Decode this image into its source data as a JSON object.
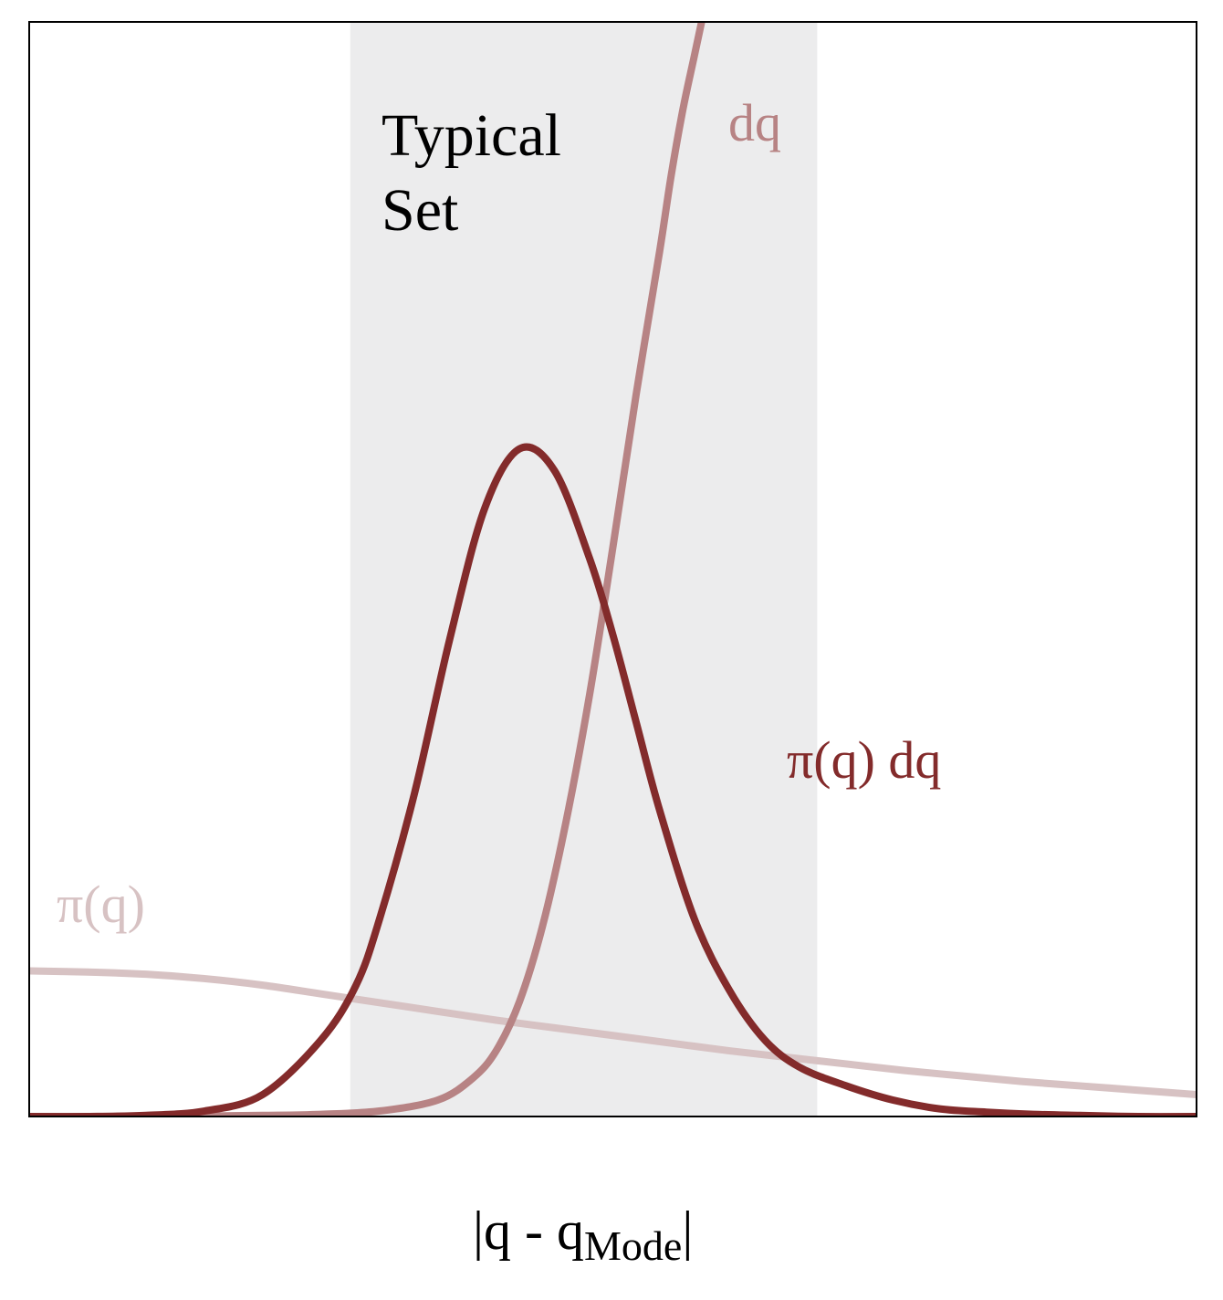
{
  "chart_data": {
    "type": "line",
    "title": "",
    "xlabel": {
      "main": "|q - q",
      "subscript": "Mode",
      "suffix": "|"
    },
    "ylabel": "",
    "xlim": [
      0,
      1
    ],
    "ylim": [
      0,
      1
    ],
    "grid": false,
    "legend": "none",
    "region": {
      "label_line1": "Typical",
      "label_line2": "Set",
      "x_range": [
        0.275,
        0.675
      ],
      "color": "#ececed"
    },
    "series": [
      {
        "name": "π(q)",
        "color": "#d7c2c3",
        "x": [
          0.0,
          0.05,
          0.1,
          0.15,
          0.2,
          0.25,
          0.3,
          0.35,
          0.4,
          0.45,
          0.5,
          0.55,
          0.6,
          0.65,
          0.7,
          0.75,
          0.8,
          0.85,
          0.9,
          0.95,
          1.0
        ],
        "y": [
          0.133,
          0.132,
          0.13,
          0.126,
          0.12,
          0.112,
          0.104,
          0.096,
          0.088,
          0.081,
          0.074,
          0.067,
          0.06,
          0.054,
          0.048,
          0.042,
          0.037,
          0.032,
          0.028,
          0.024,
          0.02
        ]
      },
      {
        "name": "dq",
        "color": "#b78384",
        "x": [
          0.0,
          0.1,
          0.2,
          0.25,
          0.3,
          0.35,
          0.38,
          0.4,
          0.42,
          0.44,
          0.46,
          0.48,
          0.5,
          0.52,
          0.54,
          0.55,
          0.56,
          0.57,
          0.58
        ],
        "y": [
          0.0,
          0.0,
          0.001,
          0.002,
          0.005,
          0.015,
          0.035,
          0.06,
          0.105,
          0.175,
          0.27,
          0.385,
          0.52,
          0.66,
          0.79,
          0.86,
          0.92,
          0.97,
          1.02
        ]
      },
      {
        "name": "π(q) dq",
        "color": "#832b2b",
        "x": [
          0.0,
          0.05,
          0.1,
          0.15,
          0.2,
          0.25,
          0.28,
          0.3,
          0.33,
          0.36,
          0.39,
          0.42,
          0.45,
          0.48,
          0.5,
          0.52,
          0.54,
          0.57,
          0.6,
          0.63,
          0.66,
          0.7,
          0.74,
          0.78,
          0.82,
          0.86,
          0.9,
          0.95,
          1.0
        ],
        "y": [
          0.0,
          0.0,
          0.001,
          0.005,
          0.02,
          0.07,
          0.12,
          0.18,
          0.295,
          0.435,
          0.555,
          0.61,
          0.59,
          0.51,
          0.44,
          0.36,
          0.28,
          0.18,
          0.115,
          0.07,
          0.045,
          0.028,
          0.015,
          0.007,
          0.004,
          0.002,
          0.001,
          0.0,
          0.0
        ]
      }
    ],
    "annotations": [
      {
        "text": "dq",
        "series": "dq"
      },
      {
        "text": "π(q) dq",
        "series": "π(q) dq"
      },
      {
        "text": "π(q)",
        "series": "π(q)"
      }
    ]
  }
}
